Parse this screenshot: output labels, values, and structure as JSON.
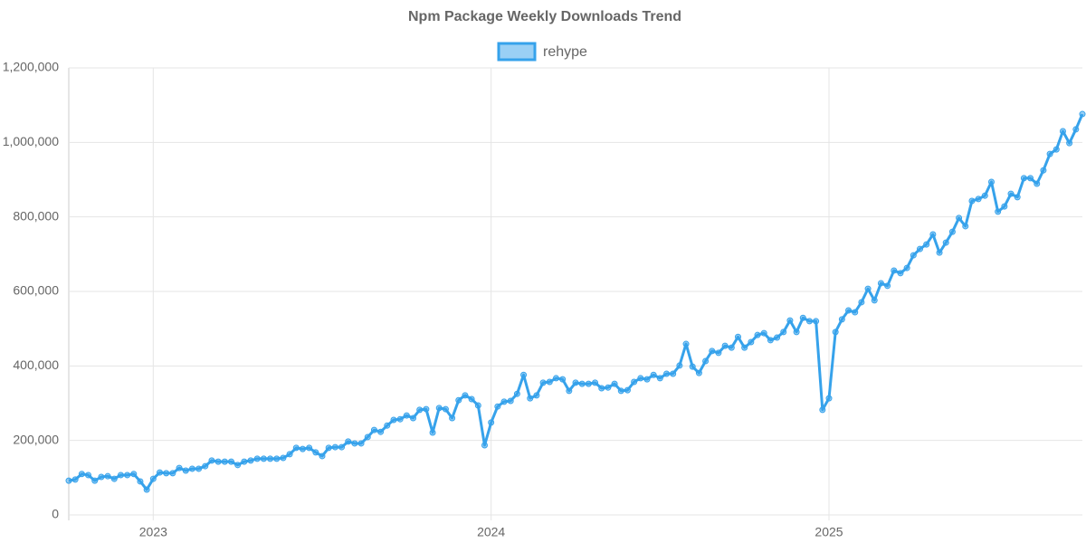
{
  "chart_data": {
    "type": "line",
    "title": "Npm Package Weekly Downloads Trend",
    "categories": [
      null,
      null,
      null,
      null,
      null,
      null,
      null,
      null,
      null,
      null,
      null,
      null,
      null,
      "2023",
      null,
      null,
      null,
      null,
      null,
      null,
      null,
      null,
      null,
      null,
      null,
      null,
      null,
      null,
      null,
      null,
      null,
      null,
      null,
      null,
      null,
      null,
      null,
      null,
      null,
      null,
      null,
      null,
      null,
      null,
      null,
      null,
      null,
      null,
      null,
      null,
      null,
      null,
      null,
      null,
      null,
      null,
      null,
      null,
      null,
      null,
      null,
      null,
      null,
      null,
      null,
      "2024",
      null,
      null,
      null,
      null,
      null,
      null,
      null,
      null,
      null,
      null,
      null,
      null,
      null,
      null,
      null,
      null,
      null,
      null,
      null,
      null,
      null,
      null,
      null,
      null,
      null,
      null,
      null,
      null,
      null,
      null,
      null,
      null,
      null,
      null,
      null,
      null,
      null,
      null,
      null,
      null,
      null,
      null,
      null,
      null,
      null,
      null,
      null,
      null,
      null,
      null,
      null,
      "2025",
      null,
      null,
      null,
      null,
      null,
      null,
      null,
      null,
      null,
      null,
      null,
      null,
      null,
      null,
      null,
      null,
      null,
      null,
      null,
      null,
      null,
      null,
      null,
      null,
      null,
      null,
      null,
      null,
      null,
      null,
      null,
      null,
      null,
      null,
      null,
      null,
      null,
      null,
      null
    ],
    "series": [
      {
        "name": "rehype",
        "color": "#36a2eb",
        "values": [
          92000,
          95000,
          110000,
          107000,
          92000,
          102000,
          104000,
          97000,
          107000,
          107000,
          110000,
          90000,
          68000,
          97000,
          114000,
          112000,
          112000,
          126000,
          119000,
          124000,
          124000,
          131000,
          146000,
          143000,
          143000,
          143000,
          134000,
          143000,
          146000,
          151000,
          151000,
          151000,
          151000,
          153000,
          163000,
          180000,
          177000,
          180000,
          168000,
          158000,
          180000,
          182000,
          182000,
          197000,
          192000,
          192000,
          209000,
          228000,
          223000,
          240000,
          255000,
          257000,
          267000,
          260000,
          282000,
          284000,
          221000,
          287000,
          284000,
          260000,
          308000,
          321000,
          311000,
          294000,
          187000,
          248000,
          291000,
          304000,
          306000,
          325000,
          376000,
          313000,
          321000,
          355000,
          357000,
          367000,
          364000,
          333000,
          355000,
          352000,
          352000,
          355000,
          340000,
          342000,
          352000,
          333000,
          335000,
          357000,
          367000,
          364000,
          376000,
          367000,
          379000,
          379000,
          401000,
          459000,
          398000,
          381000,
          413000,
          440000,
          435000,
          454000,
          449000,
          478000,
          449000,
          464000,
          483000,
          488000,
          469000,
          476000,
          491000,
          522000,
          491000,
          529000,
          520000,
          520000,
          282000,
          313000,
          491000,
          525000,
          549000,
          544000,
          571000,
          607000,
          576000,
          622000,
          615000,
          656000,
          649000,
          663000,
          697000,
          714000,
          726000,
          753000,
          704000,
          731000,
          760000,
          797000,
          775000,
          843000,
          848000,
          857000,
          894000,
          814000,
          828000,
          862000,
          853000,
          904000,
          904000,
          889000,
          925000,
          969000,
          981000,
          1030000,
          998000,
          1035000,
          1076000
        ]
      }
    ],
    "ylim": [
      0,
      1200000
    ],
    "yticks": [
      0,
      {
        "value": 200000,
        "label": "200,000"
      },
      {
        "value": 400000,
        "label": "400,000"
      },
      {
        "value": 600000,
        "label": "600,000"
      },
      {
        "value": 800000,
        "label": "800,000"
      },
      {
        "value": 1000000,
        "label": "1,000,000"
      },
      {
        "value": 1200000,
        "label": "1,200,000"
      }
    ],
    "grid": true
  }
}
